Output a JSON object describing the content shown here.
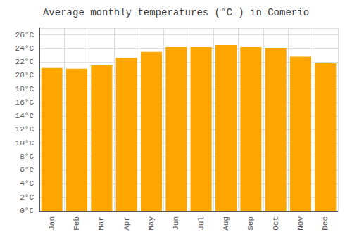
{
  "chart_data": {
    "type": "bar",
    "title": "Average monthly temperatures (°C ) in Comerío",
    "categories": [
      "Jan",
      "Feb",
      "Mar",
      "Apr",
      "May",
      "Jun",
      "Jul",
      "Aug",
      "Sep",
      "Oct",
      "Nov",
      "Dec"
    ],
    "values": [
      21.1,
      21.0,
      21.5,
      22.6,
      23.5,
      24.2,
      24.2,
      24.5,
      24.2,
      24.0,
      22.8,
      21.8
    ],
    "color": "#FFA500",
    "ylim": [
      0,
      27
    ],
    "yticks": [
      {
        "value": 0,
        "label": "0°C"
      },
      {
        "value": 2,
        "label": "2°C"
      },
      {
        "value": 4,
        "label": "4°C"
      },
      {
        "value": 6,
        "label": "6°C"
      },
      {
        "value": 8,
        "label": "8°C"
      },
      {
        "value": 10,
        "label": "10°C"
      },
      {
        "value": 12,
        "label": "12°C"
      },
      {
        "value": 14,
        "label": "14°C"
      },
      {
        "value": 16,
        "label": "16°C"
      },
      {
        "value": 18,
        "label": "18°C"
      },
      {
        "value": 20,
        "label": "20°C"
      },
      {
        "value": 22,
        "label": "22°C"
      },
      {
        "value": 24,
        "label": "24°C"
      },
      {
        "value": 26,
        "label": "26°C"
      }
    ],
    "grid": true
  }
}
